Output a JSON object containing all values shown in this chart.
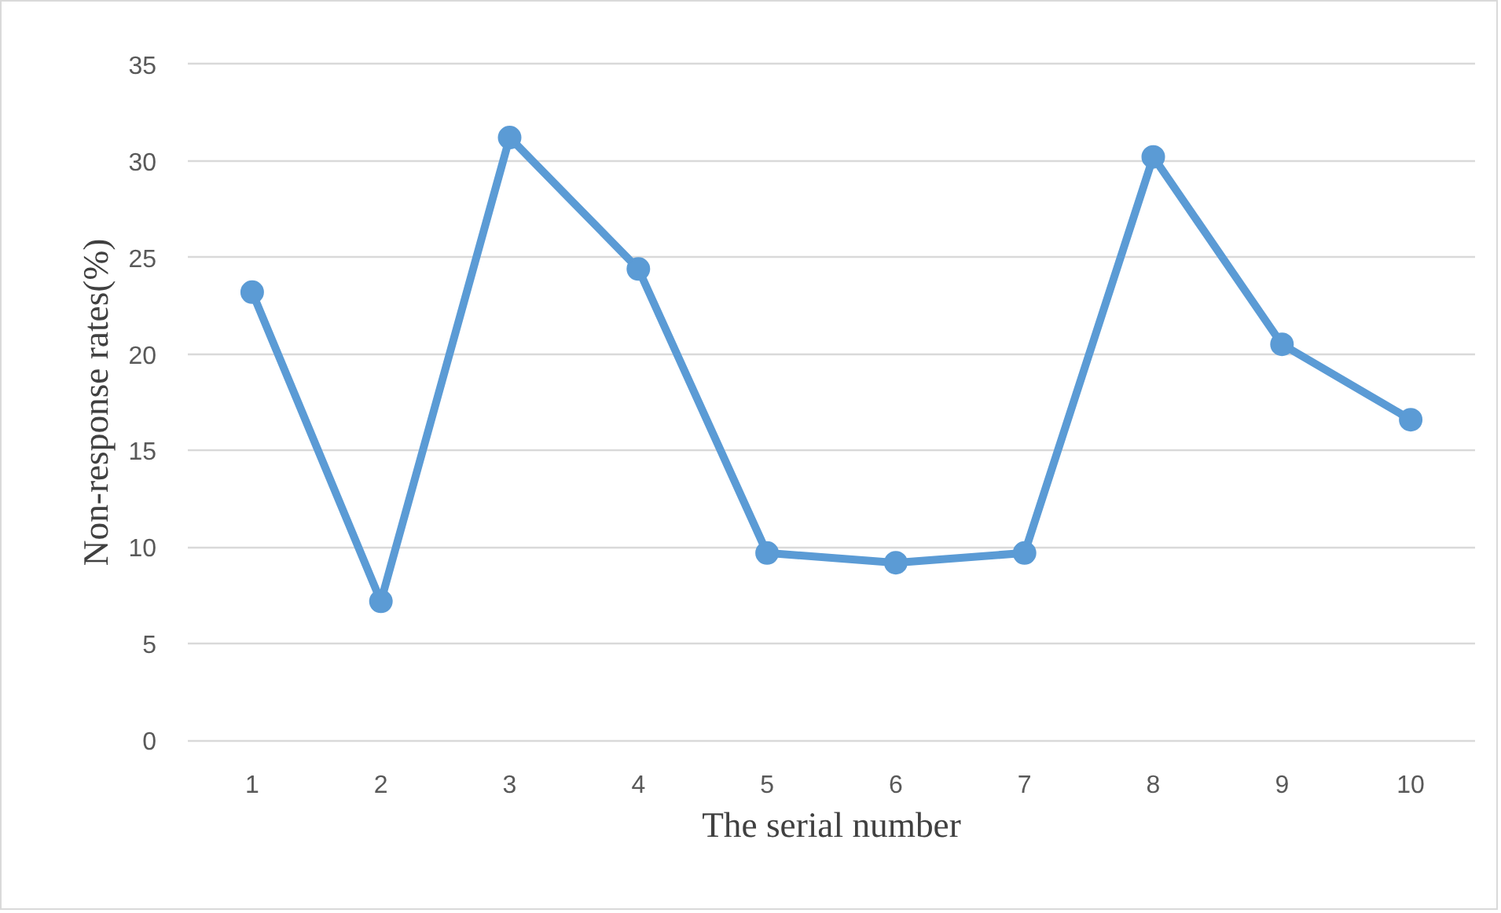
{
  "chart_data": {
    "type": "line",
    "xlabel": "The serial number",
    "ylabel": "Non-response rates(%)",
    "categories": [
      "1",
      "2",
      "3",
      "4",
      "5",
      "6",
      "7",
      "8",
      "9",
      "10"
    ],
    "series": [
      {
        "color": "#5b9bd5",
        "values": [
          23.2,
          7.2,
          31.2,
          24.4,
          9.7,
          9.2,
          9.7,
          30.2,
          20.5,
          16.6
        ]
      }
    ],
    "ylim": [
      0,
      35
    ],
    "yticks": [
      0,
      5,
      10,
      15,
      20,
      25,
      30,
      35
    ],
    "grid": "y",
    "marker": "circle",
    "line_style": "solid"
  }
}
